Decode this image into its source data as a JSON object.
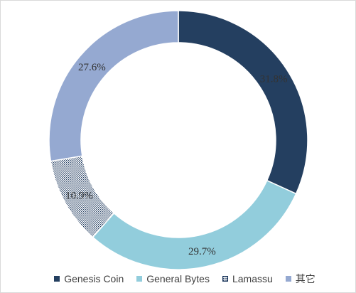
{
  "chart_data": {
    "type": "pie",
    "style": "donut",
    "title": "",
    "legend_position": "bottom",
    "series": [
      {
        "name": "Genesis Coin",
        "value": 31.8,
        "label": "31.8%",
        "color": "#243f60",
        "pattern": "solid"
      },
      {
        "name": "General Bytes",
        "value": 29.7,
        "label": "29.7%",
        "color": "#92cddc",
        "pattern": "solid"
      },
      {
        "name": "Lamassu",
        "value": 10.9,
        "label": "10.9%",
        "color": "#1f3a5f",
        "pattern": "dots"
      },
      {
        "name": "其它",
        "value": 27.6,
        "label": "27.6%",
        "color": "#95a9d1",
        "pattern": "solid"
      }
    ]
  }
}
